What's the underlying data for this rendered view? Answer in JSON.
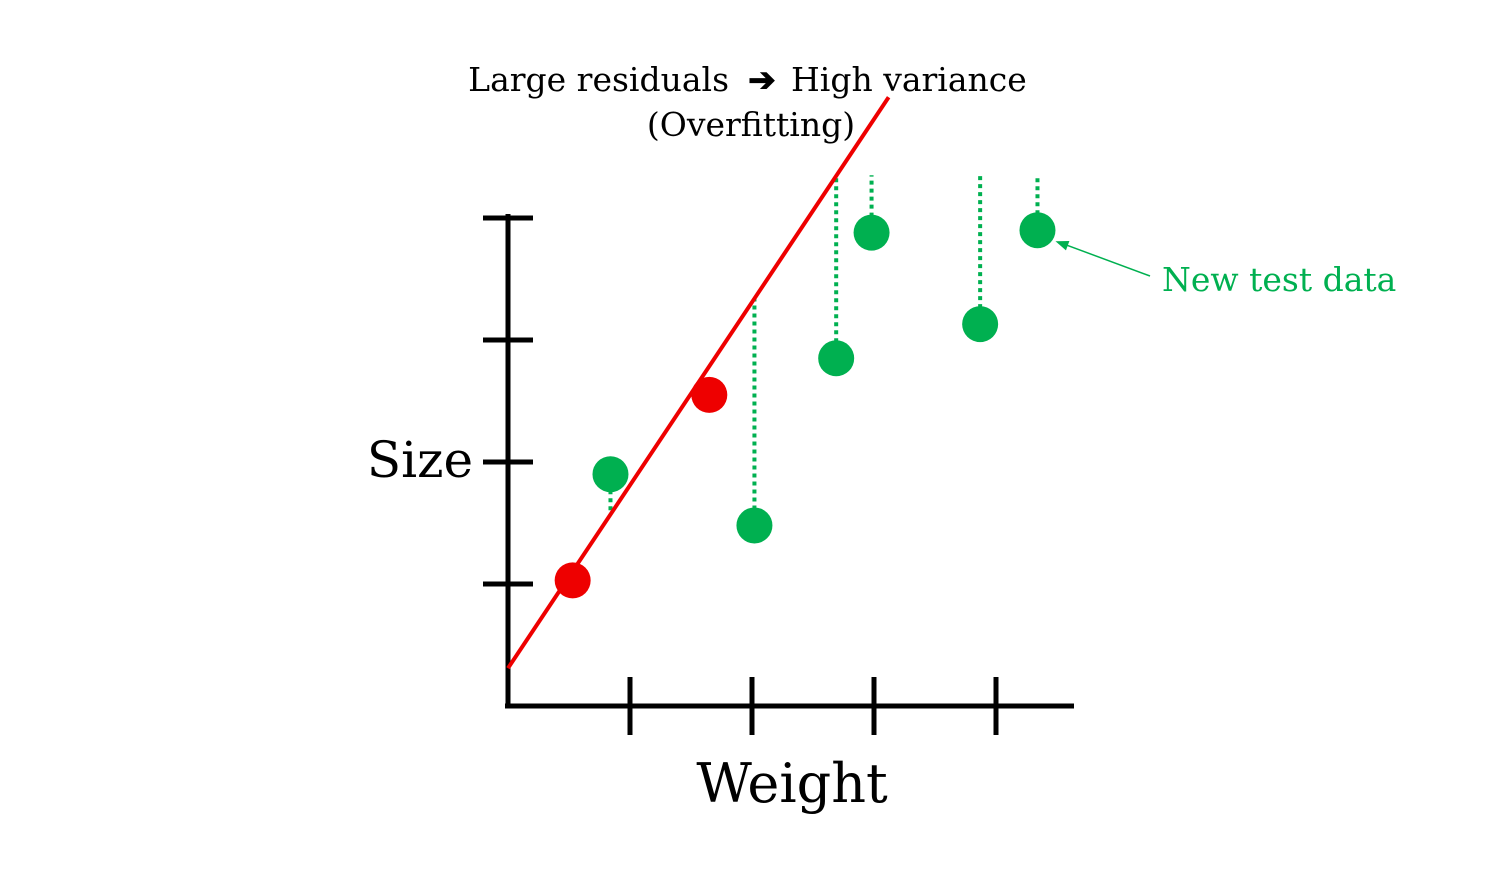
{
  "chart_data": {
    "type": "scatter",
    "title_line1_left": "Large residuals",
    "title_arrow": "➔",
    "title_line1_right": "High variance",
    "title_line2": "(Overfitting)",
    "xlabel": "Weight",
    "ylabel": "Size",
    "xlim": [
      0,
      4.6
    ],
    "ylim": [
      0,
      4.6
    ],
    "xticks": [
      1,
      2,
      3,
      4
    ],
    "yticks": [
      1,
      2,
      3,
      4
    ],
    "grid": false,
    "fit_line": {
      "name": "",
      "color": "#ee0000",
      "intercept": 0.31,
      "slope": 1.5,
      "x_range": [
        0,
        3.12
      ]
    },
    "series": [
      {
        "name": "",
        "role": "training",
        "color": "#ee0000",
        "points": [
          {
            "x": 0.53,
            "y": 1.03
          },
          {
            "x": 1.65,
            "y": 2.55
          }
        ]
      },
      {
        "name": "",
        "role": "test",
        "color": "#00b050",
        "points": [
          {
            "x": 0.84,
            "y": 1.9
          },
          {
            "x": 2.02,
            "y": 1.48
          },
          {
            "x": 2.69,
            "y": 2.85
          },
          {
            "x": 2.98,
            "y": 3.88
          },
          {
            "x": 3.87,
            "y": 3.13
          },
          {
            "x": 4.34,
            "y": 3.9
          }
        ]
      }
    ],
    "annotation": {
      "text": "New test data",
      "color": "#00b050",
      "points_to_index": 5
    }
  }
}
